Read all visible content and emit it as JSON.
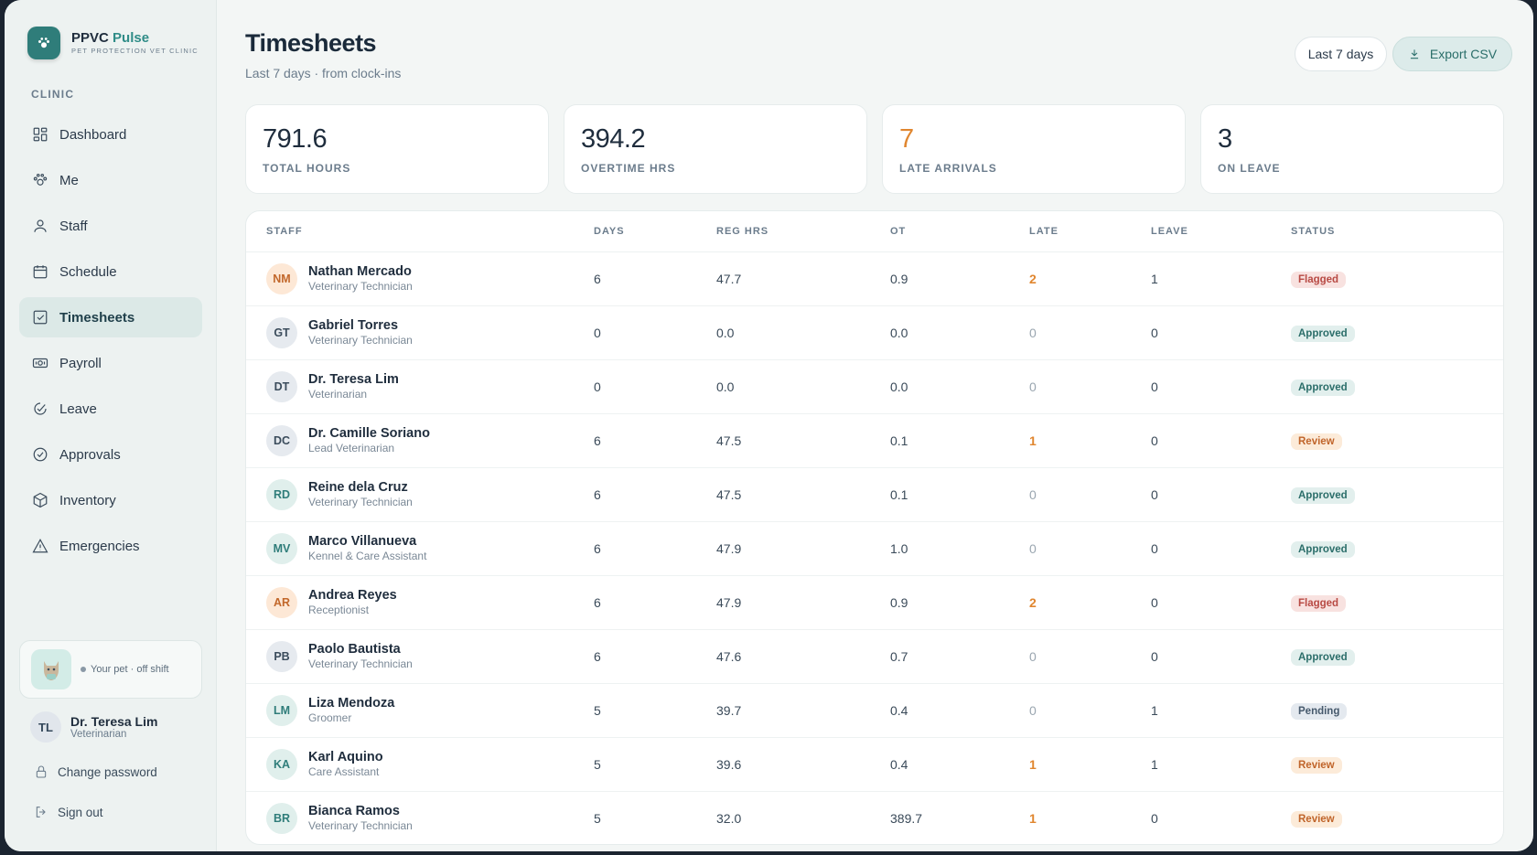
{
  "brand": {
    "name_main": "PPVC",
    "name_accent": "Pulse",
    "subtitle": "PET PROTECTION VET CLINIC"
  },
  "sidebar": {
    "section_label": "CLINIC",
    "items": [
      {
        "label": "Dashboard",
        "icon": "grid-icon"
      },
      {
        "label": "Me",
        "icon": "paw-icon"
      },
      {
        "label": "Staff",
        "icon": "person-icon"
      },
      {
        "label": "Schedule",
        "icon": "calendar-icon"
      },
      {
        "label": "Timesheets",
        "icon": "checkbox-icon",
        "active": true
      },
      {
        "label": "Payroll",
        "icon": "money-icon"
      },
      {
        "label": "Leave",
        "icon": "leave-icon"
      },
      {
        "label": "Approvals",
        "icon": "check-circle-icon"
      },
      {
        "label": "Inventory",
        "icon": "box-icon"
      },
      {
        "label": "Emergencies",
        "icon": "warning-icon"
      }
    ],
    "pet_status": "Your pet · off shift",
    "user": {
      "initials": "TL",
      "name": "Dr. Teresa Lim",
      "role": "Veterinarian"
    },
    "change_password": "Change password",
    "sign_out": "Sign out"
  },
  "header": {
    "title": "Timesheets",
    "subtitle": "Last 7 days · from clock-ins",
    "range_button": "Last 7 days",
    "export_button": "Export CSV"
  },
  "stats": [
    {
      "value": "791.6",
      "label": "TOTAL HOURS"
    },
    {
      "value": "394.2",
      "label": "OVERTIME HRS"
    },
    {
      "value": "7",
      "label": "LATE ARRIVALS"
    },
    {
      "value": "3",
      "label": "ON LEAVE"
    }
  ],
  "table": {
    "headers": [
      "STAFF",
      "DAYS",
      "REG HRS",
      "OT",
      "LATE",
      "LEAVE",
      "STATUS"
    ],
    "rows": [
      {
        "initials": "NM",
        "name": "Nathan Mercado",
        "role": "Veterinary Technician",
        "days": "6",
        "reg": "47.7",
        "ot": "0.9",
        "late": "2",
        "leave": "1",
        "status": "Flagged",
        "avatar": "orange"
      },
      {
        "initials": "GT",
        "name": "Gabriel Torres",
        "role": "Veterinary Technician",
        "days": "0",
        "reg": "0.0",
        "ot": "0.0",
        "late": "0",
        "leave": "0",
        "status": "Approved",
        "avatar": "gray"
      },
      {
        "initials": "DT",
        "name": "Dr. Teresa Lim",
        "role": "Veterinarian",
        "days": "0",
        "reg": "0.0",
        "ot": "0.0",
        "late": "0",
        "leave": "0",
        "status": "Approved",
        "avatar": "gray"
      },
      {
        "initials": "DC",
        "name": "Dr. Camille Soriano",
        "role": "Lead Veterinarian",
        "days": "6",
        "reg": "47.5",
        "ot": "0.1",
        "late": "1",
        "leave": "0",
        "status": "Review",
        "avatar": "gray"
      },
      {
        "initials": "RD",
        "name": "Reine dela Cruz",
        "role": "Veterinary Technician",
        "days": "6",
        "reg": "47.5",
        "ot": "0.1",
        "late": "0",
        "leave": "0",
        "status": "Approved",
        "avatar": "teal"
      },
      {
        "initials": "MV",
        "name": "Marco Villanueva",
        "role": "Kennel & Care Assistant",
        "days": "6",
        "reg": "47.9",
        "ot": "1.0",
        "late": "0",
        "leave": "0",
        "status": "Approved",
        "avatar": "teal"
      },
      {
        "initials": "AR",
        "name": "Andrea Reyes",
        "role": "Receptionist",
        "days": "6",
        "reg": "47.9",
        "ot": "0.9",
        "late": "2",
        "leave": "0",
        "status": "Flagged",
        "avatar": "orange"
      },
      {
        "initials": "PB",
        "name": "Paolo Bautista",
        "role": "Veterinary Technician",
        "days": "6",
        "reg": "47.6",
        "ot": "0.7",
        "late": "0",
        "leave": "0",
        "status": "Approved",
        "avatar": "gray"
      },
      {
        "initials": "LM",
        "name": "Liza Mendoza",
        "role": "Groomer",
        "days": "5",
        "reg": "39.7",
        "ot": "0.4",
        "late": "0",
        "leave": "1",
        "status": "Pending",
        "avatar": "teal"
      },
      {
        "initials": "KA",
        "name": "Karl Aquino",
        "role": "Care Assistant",
        "days": "5",
        "reg": "39.6",
        "ot": "0.4",
        "late": "1",
        "leave": "1",
        "status": "Review",
        "avatar": "teal"
      },
      {
        "initials": "BR",
        "name": "Bianca Ramos",
        "role": "Veterinary Technician",
        "days": "5",
        "reg": "32.0",
        "ot": "389.7",
        "late": "1",
        "leave": "0",
        "status": "Review",
        "avatar": "teal"
      }
    ]
  },
  "colors": {
    "accent": "#2f7d7a",
    "warning": "#e0862f",
    "flagged": "#b84a44"
  }
}
